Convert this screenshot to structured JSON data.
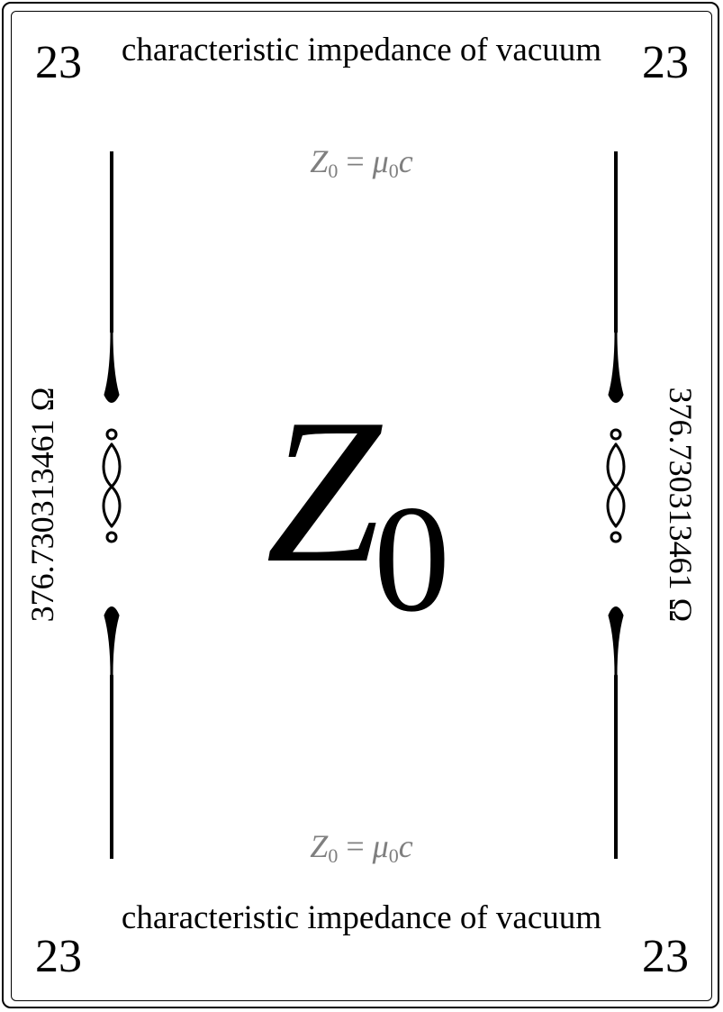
{
  "card": {
    "number": "23",
    "name": "characteristic impedance of vacuum",
    "formula": {
      "lhs": "Z",
      "lhs_sub": "0",
      "equals": "=",
      "rhs": "μ",
      "rhs_sub": "0",
      "rhs_tail": "c"
    },
    "value": "376.730313461 Ω",
    "symbol": {
      "base": "Z",
      "sub": "0"
    }
  }
}
